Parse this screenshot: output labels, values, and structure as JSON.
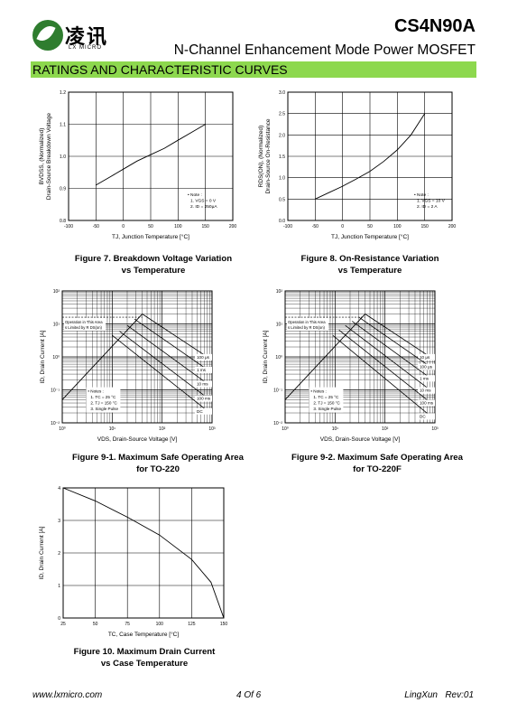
{
  "header": {
    "logo_cn": "凌讯",
    "logo_en": "LX MICRO",
    "part_number": "CS4N90A",
    "subtitle": "N-Channel Enhancement Mode Power MOSFET",
    "section_title": "RATINGS AND CHARACTERISTIC CURVES",
    "brand_color": "#2f7d2f",
    "section_color": "#8dd84e"
  },
  "figures": {
    "fig7": {
      "line1": "Figure 7. Breakdown Voltage Variation",
      "line2": "vs Temperature"
    },
    "fig8": {
      "line1": "Figure 8. On-Resistance Variation",
      "line2": "vs Temperature"
    },
    "fig91": {
      "line1": "Figure 9-1. Maximum Safe Operating Area",
      "line2": "for TO-220"
    },
    "fig92": {
      "line1": "Figure 9-2. Maximum Safe Operating Area",
      "line2": "for TO-220F"
    },
    "fig10": {
      "line1": "Figure 10. Maximum Drain Current",
      "line2": "vs Case Temperature"
    }
  },
  "footer": {
    "website": "www.lxmicro.com",
    "page": "4 Of 6",
    "rev": "LingXun   Rev:01"
  },
  "chart_data": [
    {
      "type": "line",
      "xlabel": "TJ, Junction Temperature [°C]",
      "ylabel_top": "BVDSS, (Normalized)",
      "ylabel_bottom": "Drain-Source Breakdown Voltage",
      "xlim": [
        -100,
        200
      ],
      "ylim": [
        0.8,
        1.2
      ],
      "xticks": [
        "-100",
        "-50",
        "0",
        "50",
        "100",
        "150",
        "200"
      ],
      "yticks": [
        "0.8",
        "0.9",
        "1.0",
        "1.1",
        "1.2"
      ],
      "x": [
        -50,
        -25,
        0,
        25,
        50,
        75,
        100,
        125,
        150
      ],
      "y": [
        0.91,
        0.935,
        0.96,
        0.985,
        1.005,
        1.025,
        1.05,
        1.075,
        1.1
      ],
      "notes": [
        "• Note :",
        "1. VGS = 0 V",
        "2. ID = 250μA"
      ]
    },
    {
      "type": "line",
      "xlabel": "TJ, Junction Temperature [°C]",
      "ylabel_top": "RDS(ON), (Normalized)",
      "ylabel_bottom": "Drain-Source On-Resistance",
      "xlim": [
        -100,
        200
      ],
      "ylim": [
        0.0,
        3.0
      ],
      "xticks": [
        "-100",
        "-50",
        "0",
        "50",
        "100",
        "150",
        "200"
      ],
      "yticks": [
        "0.0",
        "0.5",
        "1.0",
        "1.5",
        "2.0",
        "2.5",
        "3.0"
      ],
      "x": [
        -50,
        -25,
        0,
        25,
        50,
        75,
        100,
        125,
        150
      ],
      "y": [
        0.5,
        0.65,
        0.8,
        0.97,
        1.15,
        1.38,
        1.65,
        2.0,
        2.5
      ],
      "notes": [
        "• Note :",
        "1. VGS = 10 V",
        "2. ID = 2 A"
      ]
    },
    {
      "type": "line",
      "scale": "log-log",
      "xlabel": "VDS, Drain-Source Voltage [V]",
      "ylabel": "ID, Drain Current [A]",
      "xticks": [
        "10⁰",
        "10¹",
        "10²",
        "10³"
      ],
      "yticks": [
        "10⁻²",
        "10⁻¹",
        "10⁰",
        "10¹",
        "10²"
      ],
      "limit_text": "Operation in This Area is Limited by R DS(on)",
      "pulse_labels": [
        "100 μs",
        "1 ms",
        "10 ms",
        "100 ms",
        "DC"
      ],
      "notes": [
        "• Notes :",
        "1. TC = 25 °C",
        "2. TJ = 150 °C",
        "3. Single Pulse"
      ]
    },
    {
      "type": "line",
      "scale": "log-log",
      "xlabel": "VDS, Drain-Source Voltage [V]",
      "ylabel": "ID, Drain Current [A]",
      "xticks": [
        "10⁰",
        "10¹",
        "10²",
        "10³"
      ],
      "yticks": [
        "10⁻²",
        "10⁻¹",
        "10⁰",
        "10¹",
        "10²"
      ],
      "limit_text": "Operation in This Area is Limited by R DS(on)",
      "pulse_labels": [
        "10 μs",
        "100 μs",
        "1 ms",
        "10 ms",
        "100 ms",
        "DC"
      ],
      "notes": [
        "• Notes :",
        "1. TC = 25 °C",
        "2. TJ = 150 °C",
        "3. Single Pulse"
      ]
    },
    {
      "type": "line",
      "xlabel": "TC, Case Temperature [°C]",
      "ylabel": "ID, Drain Current [A]",
      "xlim": [
        25,
        150
      ],
      "ylim": [
        0,
        4
      ],
      "xticks": [
        "25",
        "50",
        "75",
        "100",
        "125",
        "150"
      ],
      "yticks": [
        "0",
        "1",
        "2",
        "3",
        "4"
      ],
      "x": [
        25,
        50,
        75,
        100,
        125,
        140,
        150
      ],
      "y": [
        4.0,
        3.6,
        3.1,
        2.55,
        1.8,
        1.1,
        0.0
      ]
    }
  ]
}
